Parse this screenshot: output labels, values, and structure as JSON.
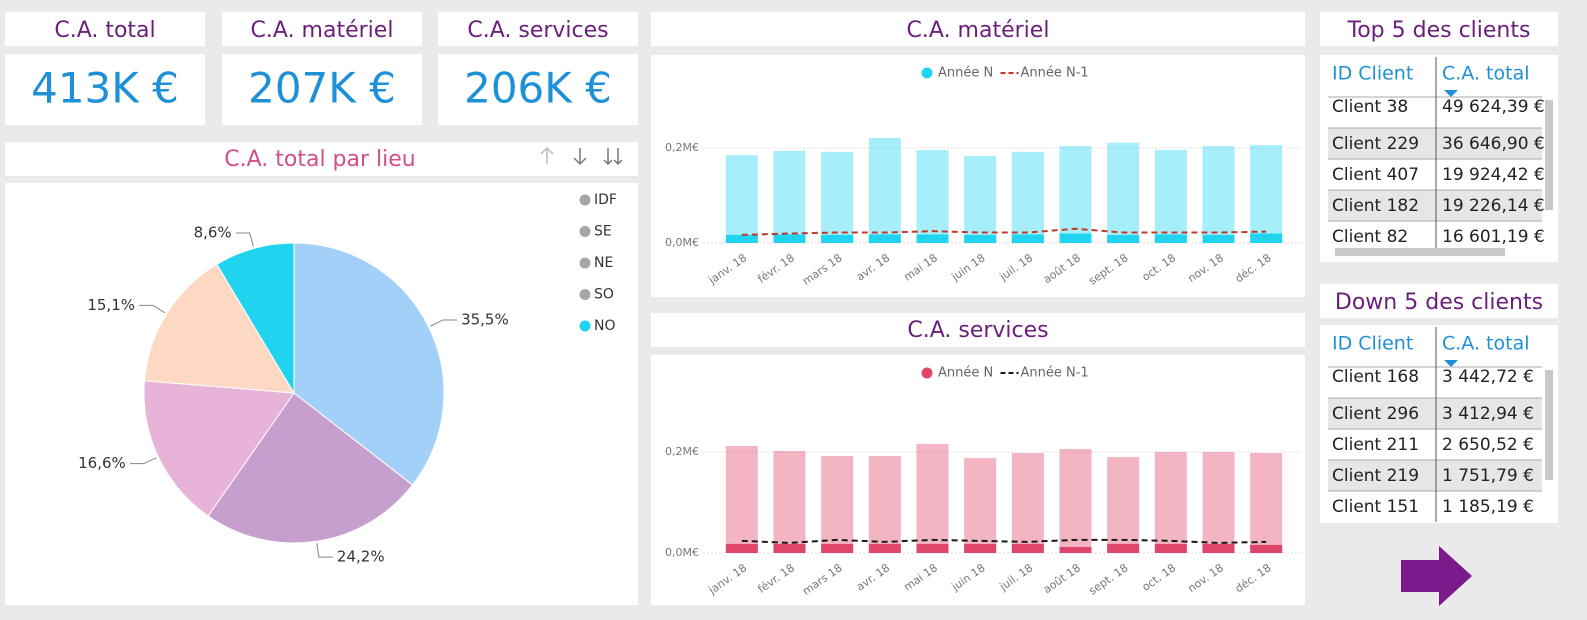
{
  "cards": [
    {
      "title": "C.A. total",
      "value": "413K €"
    },
    {
      "title": "C.A. matériel",
      "value": "207K €"
    },
    {
      "title": "C.A. services",
      "value": "206K €"
    }
  ],
  "chart_data": [
    {
      "type": "pie",
      "title": "C.A. total par lieu",
      "categories": [
        "IDF",
        "SE",
        "NE",
        "SO",
        "NO"
      ],
      "values": [
        35.5,
        24.2,
        16.6,
        15.1,
        8.6
      ],
      "value_labels": [
        "35,5%",
        "24,2%",
        "16,6%",
        "15,1%",
        "8,6%"
      ],
      "colors": [
        "#a3d0f9",
        "#c79fcf",
        "#e8b3d9",
        "#fdd8c2",
        "#20d4ef"
      ],
      "highlight": "NO",
      "legend_color": "#a6a6a6"
    },
    {
      "type": "bar",
      "title": "C.A. matériel",
      "categories": [
        "janv. 18",
        "févr. 18",
        "mars 18",
        "avr. 18",
        "mai 18",
        "juin 18",
        "juil. 18",
        "août 18",
        "sept. 18",
        "oct. 18",
        "nov. 18",
        "déc. 18"
      ],
      "ylim": [
        0,
        0.3
      ],
      "yticks": [
        {
          "value": 0,
          "label": "0,0M€"
        },
        {
          "value": 0.2,
          "label": "0,2M€"
        }
      ],
      "grid": true,
      "series": [
        {
          "name": "Année N",
          "type": "bar",
          "color": "#20d4ef",
          "values": [
            0.185,
            0.194,
            0.192,
            0.221,
            0.196,
            0.183,
            0.192,
            0.204,
            0.211,
            0.196,
            0.204,
            0.206
          ],
          "highlight_values": [
            0.017,
            0.018,
            0.017,
            0.018,
            0.018,
            0.017,
            0.018,
            0.02,
            0.017,
            0.018,
            0.017,
            0.02
          ]
        },
        {
          "name": "Année N-1",
          "type": "line",
          "color": "#c0392b",
          "values": [
            0.017,
            0.02,
            0.022,
            0.022,
            0.025,
            0.022,
            0.022,
            0.03,
            0.022,
            0.022,
            0.022,
            0.024
          ]
        }
      ]
    },
    {
      "type": "bar",
      "title": "C.A. services",
      "categories": [
        "janv. 18",
        "févr. 18",
        "mars 18",
        "avr. 18",
        "mai 18",
        "juin 18",
        "juil. 18",
        "août 18",
        "sept. 18",
        "oct. 18",
        "nov. 18",
        "déc. 18"
      ],
      "ylim": [
        0,
        0.3
      ],
      "yticks": [
        {
          "value": 0,
          "label": "0,0M€"
        },
        {
          "value": 0.2,
          "label": "0,2M€"
        }
      ],
      "grid": true,
      "series": [
        {
          "name": "Année N",
          "type": "bar",
          "color": "#e0456a",
          "values": [
            0.212,
            0.202,
            0.192,
            0.192,
            0.216,
            0.188,
            0.198,
            0.206,
            0.19,
            0.2,
            0.2,
            0.198
          ],
          "highlight_values": [
            0.018,
            0.018,
            0.018,
            0.018,
            0.018,
            0.018,
            0.018,
            0.012,
            0.018,
            0.018,
            0.018,
            0.016
          ]
        },
        {
          "name": "Année N-1",
          "type": "line",
          "color": "#1a1a1a",
          "values": [
            0.024,
            0.02,
            0.026,
            0.022,
            0.026,
            0.024,
            0.022,
            0.026,
            0.026,
            0.024,
            0.02,
            0.022
          ]
        }
      ]
    }
  ],
  "tables": [
    {
      "title": "Top 5 des clients",
      "columns": [
        "ID Client",
        "C.A. total"
      ],
      "rows": [
        [
          "Client 38",
          "49 624,39 €"
        ],
        [
          "Client 229",
          "36 646,90 €"
        ],
        [
          "Client 407",
          "19 924,42 €"
        ],
        [
          "Client 182",
          "19 226,14 €"
        ],
        [
          "Client 82",
          "16 601,19 €"
        ]
      ]
    },
    {
      "title": "Down 5 des clients",
      "columns": [
        "ID Client",
        "C.A. total"
      ],
      "rows": [
        [
          "Client 168",
          "3 442,72 €"
        ],
        [
          "Client 296",
          "3 412,94 €"
        ],
        [
          "Client 211",
          "2 650,52 €"
        ],
        [
          "Client 219",
          "1 751,79 €"
        ],
        [
          "Client 151",
          "1 185,19 €"
        ]
      ]
    }
  ]
}
